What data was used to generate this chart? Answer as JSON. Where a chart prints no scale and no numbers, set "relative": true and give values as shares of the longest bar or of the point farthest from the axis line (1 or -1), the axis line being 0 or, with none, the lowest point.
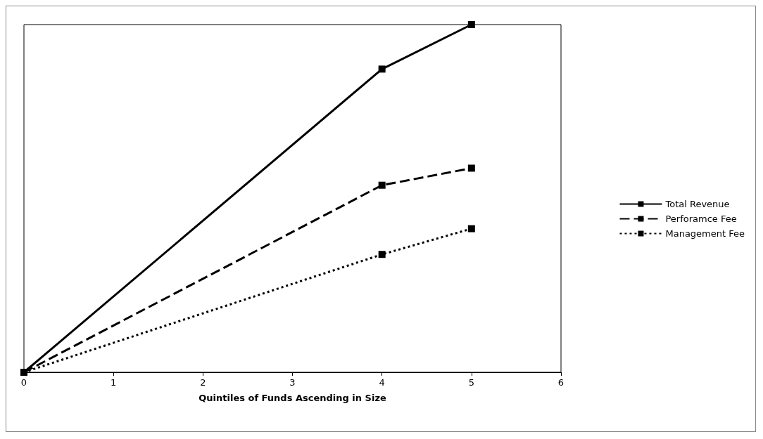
{
  "chart_data": {
    "type": "line",
    "xlabel": "Quintiles of Funds Ascending in Size",
    "relative": true,
    "x": [
      0,
      4,
      5
    ],
    "xlim": [
      0,
      6
    ],
    "xticks": [
      0,
      1,
      2,
      3,
      4,
      5,
      6
    ],
    "grid": false,
    "legend": "right",
    "marker": "square",
    "tick_labels": "x",
    "series": [
      {
        "name": "Total Revenue",
        "color": "#000000",
        "values": [
          0,
          0.872,
          1
        ],
        "line_style": "solid"
      },
      {
        "name": "Perforamce Fee",
        "color": "#000000",
        "values": [
          0,
          0.538,
          0.587
        ],
        "line_style": "dashed"
      },
      {
        "name": "Management Fee",
        "color": "#000000",
        "values": [
          0,
          0.339,
          0.413
        ],
        "line_style": "dotted"
      }
    ]
  }
}
